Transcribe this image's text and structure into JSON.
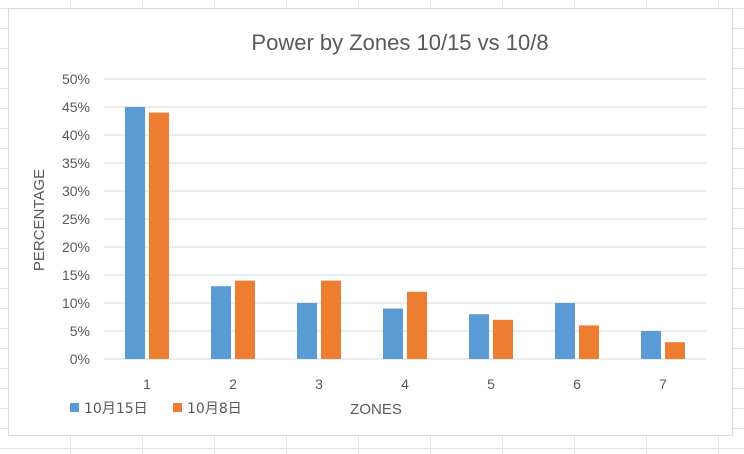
{
  "chart_data": {
    "type": "bar",
    "title": "Power by Zones 10/15 vs 10/8",
    "xlabel": "ZONES",
    "ylabel": "PERCENTAGE",
    "categories": [
      "1",
      "2",
      "3",
      "4",
      "5",
      "6",
      "7"
    ],
    "series": [
      {
        "name": "10月15日",
        "color": "#5b9bd5",
        "values": [
          45,
          13,
          10,
          9,
          8,
          10,
          5
        ]
      },
      {
        "name": "10月8日",
        "color": "#ed7d31",
        "values": [
          44,
          14,
          14,
          12,
          7,
          6,
          3
        ]
      }
    ],
    "ylim": [
      0,
      50
    ],
    "yticks": [
      "0%",
      "5%",
      "10%",
      "15%",
      "20%",
      "25%",
      "30%",
      "35%",
      "40%",
      "45%",
      "50%"
    ],
    "grid": true,
    "legend_position": "bottom-left"
  }
}
